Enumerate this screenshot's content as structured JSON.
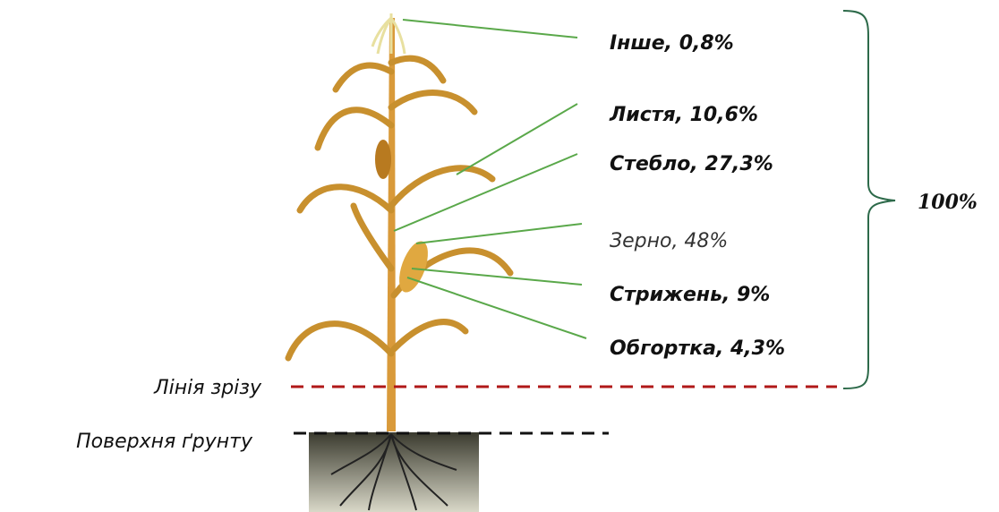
{
  "parts": [
    {
      "label": "Інше, 0,8%"
    },
    {
      "label": "Листя, 10,6%"
    },
    {
      "label": "Стебло, 27,3%"
    },
    {
      "label": "Зерно, 48%"
    },
    {
      "label": "Стрижень, 9%"
    },
    {
      "label": "Обгортка, 4,3%"
    }
  ],
  "total": "100%",
  "cut_line": "Лінія зрізу",
  "soil_surface": "Поверхня ґрунту"
}
